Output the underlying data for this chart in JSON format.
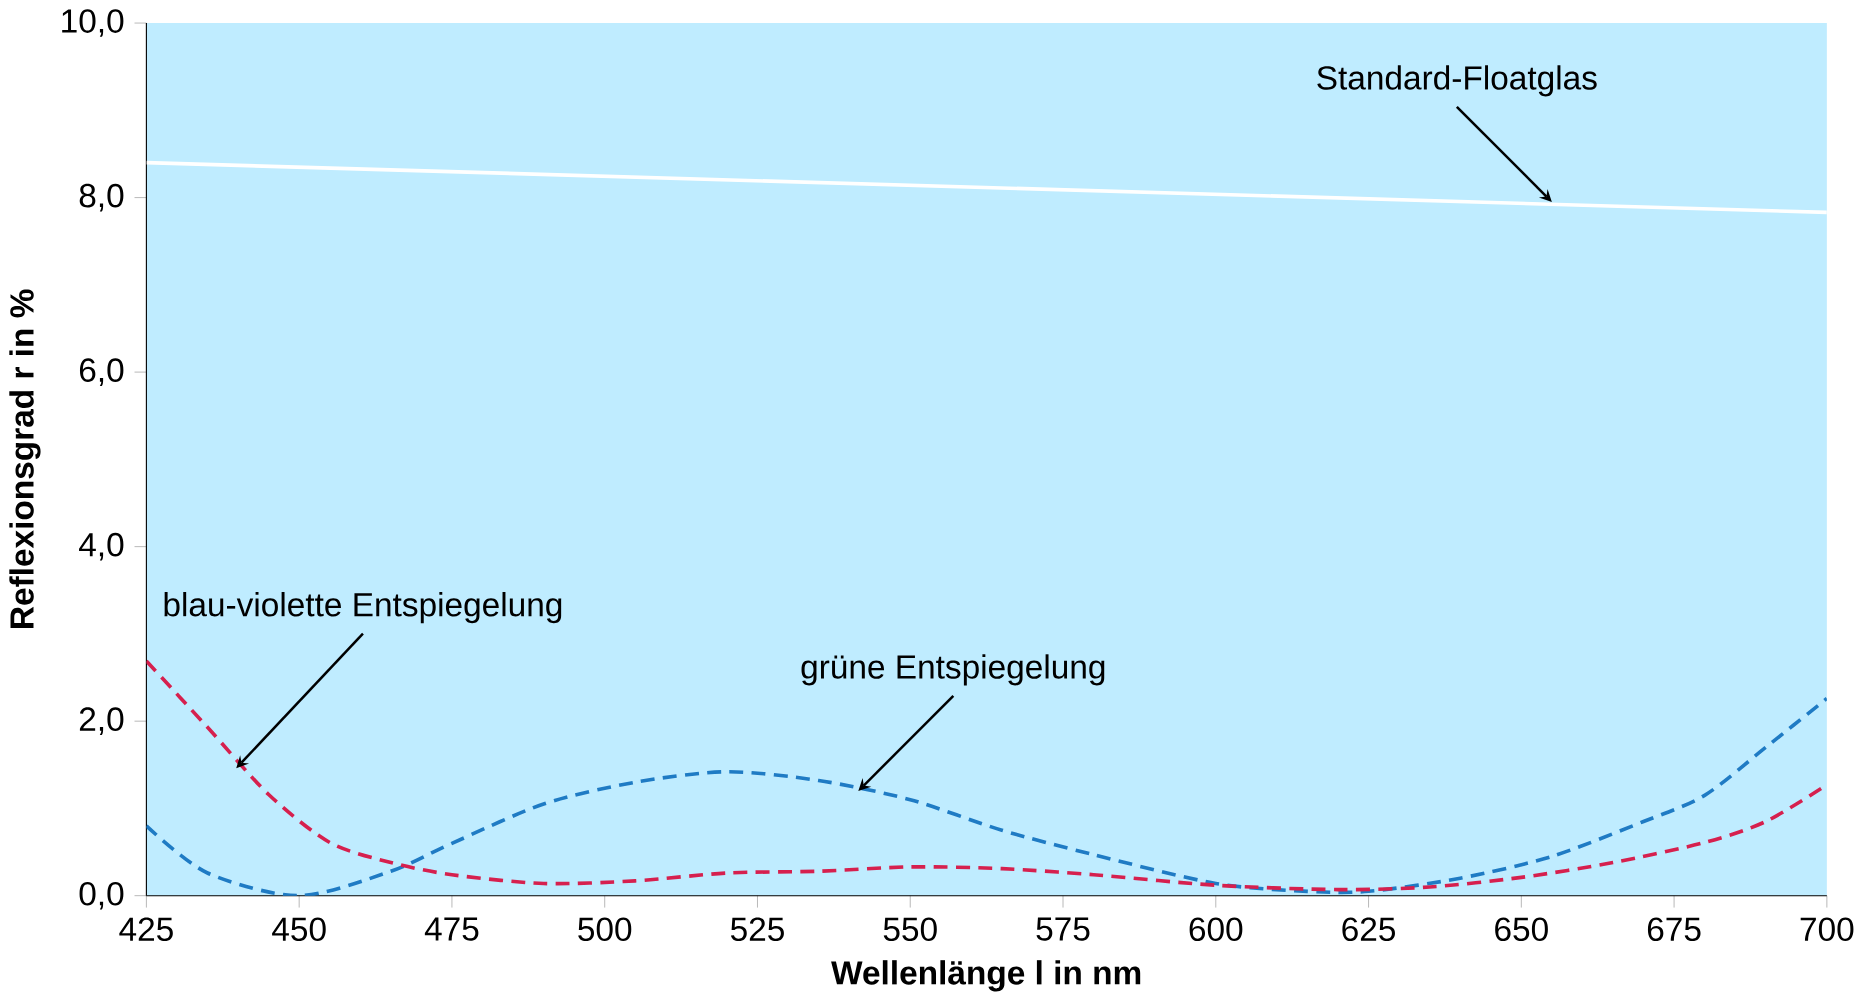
{
  "chart_data": {
    "type": "line",
    "xlabel": "Wellenlänge **l** in nm",
    "ylabel": "Reflexionsgrad **r** in %",
    "xlim": [
      425,
      700
    ],
    "xticks": [
      425,
      450,
      475,
      500,
      525,
      550,
      575,
      600,
      625,
      650,
      675,
      700
    ],
    "ylim": [
      0,
      10
    ],
    "yticks": [
      {
        "value": 0,
        "label": "0,0"
      },
      {
        "value": 2,
        "label": "2,0"
      },
      {
        "value": 4,
        "label": "4,0"
      },
      {
        "value": 6,
        "label": "6,0"
      },
      {
        "value": 8,
        "label": "8,0"
      },
      {
        "value": 10,
        "label": "10,0"
      }
    ],
    "series": [
      {
        "color": "#ffffff",
        "line_style": "solid",
        "x": [
          425,
          700
        ],
        "values": [
          8.4,
          7.83
        ]
      },
      {
        "color": "#1f7bc4",
        "line_style": "dashed",
        "x": [
          425,
          435,
          450,
          465,
          475,
          490,
          505,
          520,
          535,
          550,
          565,
          580,
          600,
          615,
          625,
          640,
          655,
          670,
          680,
          690,
          700
        ],
        "values": [
          0.8,
          0.26,
          0,
          0.28,
          0.6,
          1.05,
          1.3,
          1.42,
          1.32,
          1.1,
          0.75,
          0.47,
          0.14,
          0.05,
          0.05,
          0.2,
          0.45,
          0.85,
          1.15,
          1.7,
          2.26
        ]
      },
      {
        "color": "#d6204e",
        "line_style": "dashed",
        "x": [
          425,
          435,
          445,
          455,
          465,
          475,
          490,
          505,
          520,
          535,
          550,
          565,
          580,
          600,
          620,
          635,
          650,
          665,
          680,
          690,
          700
        ],
        "values": [
          2.69,
          1.93,
          1.16,
          0.61,
          0.38,
          0.24,
          0.14,
          0.17,
          0.26,
          0.28,
          0.33,
          0.31,
          0.24,
          0.12,
          0.07,
          0.1,
          0.21,
          0.38,
          0.61,
          0.85,
          1.27
        ]
      }
    ],
    "annotations": [
      {
        "text": "Standard-Floatglas",
        "x": 655,
        "y": 7.95
      },
      {
        "text": "grüne Entspiegelung",
        "x": 541.5,
        "y": 1.2
      },
      {
        "text": "blau-violette Entspiegelung",
        "x": 439.7,
        "y": 1.46
      }
    ]
  }
}
